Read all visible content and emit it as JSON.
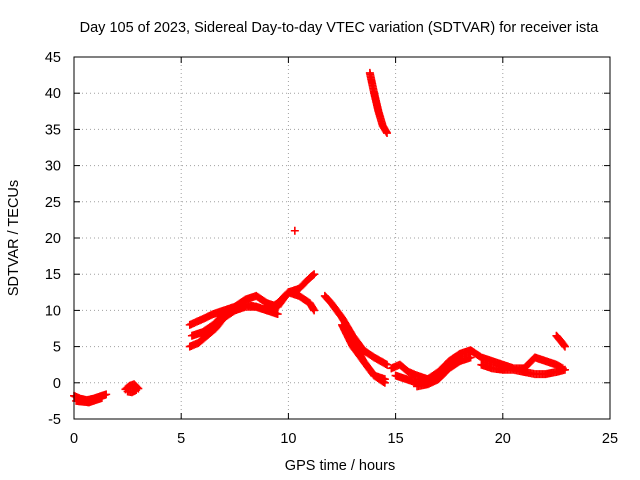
{
  "chart_data": {
    "type": "scatter",
    "title": "Day 105 of 2023, Sidereal Day-to-day VTEC variation (SDTVAR) for receiver ista",
    "xlabel": "GPS time / hours",
    "ylabel": "SDTVAR / TECUs",
    "xlim": [
      0,
      25
    ],
    "ylim": [
      -5,
      45
    ],
    "xticks": [
      0,
      5,
      10,
      15,
      20,
      25
    ],
    "yticks": [
      -5,
      0,
      5,
      10,
      15,
      20,
      25,
      30,
      35,
      40,
      45
    ],
    "grid": true,
    "marker": "+",
    "series": [
      {
        "name": "SDTVAR",
        "color": "#ff0000",
        "segments": [
          {
            "x": [
              0.0,
              0.3,
              0.6,
              0.9,
              1.2,
              1.5
            ],
            "y": [
              -1.8,
              -2.2,
              -2.4,
              -2.2,
              -1.9,
              -1.6
            ]
          },
          {
            "x": [
              0.1,
              0.4,
              0.7,
              1.0,
              1.3
            ],
            "y": [
              -2.5,
              -2.6,
              -2.7,
              -2.4,
              -2.1
            ]
          },
          {
            "x": [
              2.4,
              2.6,
              2.8,
              3.0
            ],
            "y": [
              -0.9,
              -0.4,
              -0.2,
              -0.8
            ]
          },
          {
            "x": [
              2.5,
              2.7,
              2.9
            ],
            "y": [
              -1.2,
              -1.3,
              -1.0
            ]
          },
          {
            "x": [
              5.4,
              6.0,
              6.5,
              7.0,
              7.5,
              8.0,
              8.5,
              9.0,
              9.5,
              10.0,
              10.5,
              11.0,
              11.2
            ],
            "y": [
              8.0,
              8.8,
              9.5,
              10.0,
              10.5,
              11.5,
              12.0,
              11.0,
              10.5,
              12.5,
              13.0,
              14.5,
              15.0
            ]
          },
          {
            "x": [
              5.4,
              5.8,
              6.2,
              6.6,
              7.0,
              7.5,
              8.0,
              8.5,
              9.0,
              9.5,
              10.0,
              10.5,
              11.0,
              11.2
            ],
            "y": [
              5.0,
              5.5,
              6.5,
              7.5,
              9.0,
              10.0,
              10.5,
              10.5,
              10.0,
              11.0,
              12.5,
              12.0,
              11.0,
              10.0
            ]
          },
          {
            "x": [
              5.5,
              6.0,
              6.5,
              7.0,
              7.5,
              8.0,
              8.5,
              9.0,
              9.5
            ],
            "y": [
              6.5,
              7.0,
              8.0,
              9.5,
              10.0,
              10.8,
              10.5,
              10.0,
              9.5
            ]
          },
          {
            "x": [
              10.3
            ],
            "y": [
              21.0
            ]
          },
          {
            "x": [
              11.7,
              12.0,
              12.5,
              13.0,
              13.5,
              14.0,
              14.3,
              14.6
            ],
            "y": [
              12.0,
              11.0,
              9.0,
              6.5,
              4.5,
              3.5,
              3.0,
              2.5
            ]
          },
          {
            "x": [
              12.5,
              13.0,
              13.5,
              14.0,
              14.5
            ],
            "y": [
              8.0,
              5.0,
              3.0,
              1.0,
              0.0
            ]
          },
          {
            "x": [
              13.0,
              13.5,
              14.0,
              14.5
            ],
            "y": [
              6.0,
              3.0,
              1.0,
              0.5
            ]
          },
          {
            "x": [
              13.8,
              14.0,
              14.2,
              14.4,
              14.6
            ],
            "y": [
              42.8,
              40.0,
              37.5,
              35.5,
              34.5
            ]
          },
          {
            "x": [
              14.8,
              15.2,
              15.6,
              16.0,
              16.5,
              17.0,
              17.5,
              18.0,
              18.5,
              19.0,
              19.5,
              20.0,
              20.5,
              21.0,
              21.5,
              22.0,
              22.5,
              22.8
            ],
            "y": [
              2.0,
              2.5,
              1.5,
              1.0,
              0.5,
              1.5,
              3.0,
              4.0,
              4.5,
              3.5,
              3.0,
              2.5,
              2.0,
              2.0,
              3.5,
              3.0,
              2.5,
              2.0
            ]
          },
          {
            "x": [
              16.0,
              16.5,
              17.0,
              17.5,
              18.0,
              18.5
            ],
            "y": [
              -0.5,
              -0.2,
              0.5,
              2.0,
              3.0,
              3.5
            ]
          },
          {
            "x": [
              15.0,
              15.5,
              16.0,
              16.5,
              17.0
            ],
            "y": [
              1.0,
              0.5,
              0.0,
              0.5,
              1.0
            ]
          },
          {
            "x": [
              19.0,
              19.5,
              20.0,
              20.5,
              21.0,
              21.5,
              22.0,
              22.5,
              22.9
            ],
            "y": [
              2.5,
              2.0,
              1.8,
              1.8,
              1.5,
              1.2,
              1.2,
              1.5,
              1.8
            ]
          },
          {
            "x": [
              22.5,
              22.7,
              22.9
            ],
            "y": [
              6.5,
              5.8,
              5.0
            ]
          }
        ]
      }
    ]
  }
}
